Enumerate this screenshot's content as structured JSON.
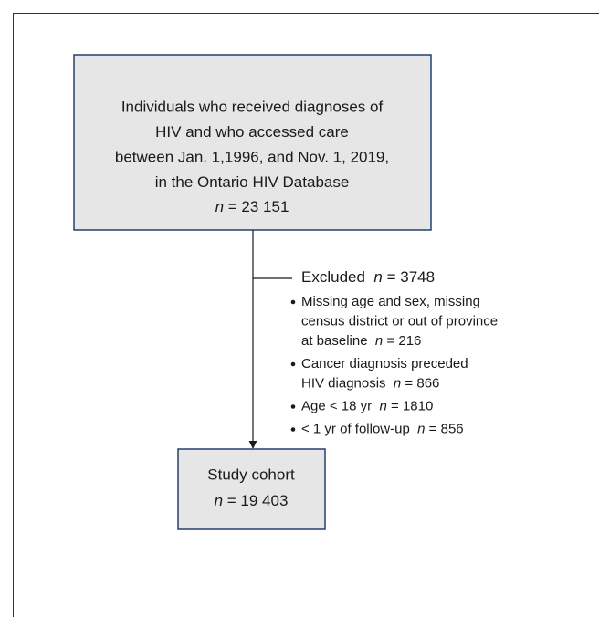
{
  "top_box": {
    "lines": [
      "Individuals who received diagnoses of",
      "HIV and who accessed care",
      "between Jan. 1,1996, and Nov. 1, 2019,",
      "in the Ontario HIV Database"
    ],
    "count": {
      "symbol": "n",
      "text": "= 23 151"
    }
  },
  "excluded": {
    "label": "Excluded",
    "count": {
      "symbol": "n",
      "text": "= 3748"
    },
    "items": [
      {
        "lines": [
          "Missing age and sex, missing",
          "census district or out of province",
          "at baseline"
        ],
        "count": {
          "symbol": "n",
          "text": "= 216"
        }
      },
      {
        "lines": [
          "Cancer diagnosis preceded",
          "HIV diagnosis"
        ],
        "count": {
          "symbol": "n",
          "text": "= 866"
        }
      },
      {
        "lines": [
          "Age < 18 yr"
        ],
        "count": {
          "symbol": "n",
          "text": "= 1810"
        }
      },
      {
        "lines": [
          "< 1 yr of follow-up"
        ],
        "count": {
          "symbol": "n",
          "text": "= 856"
        }
      }
    ]
  },
  "bottom_box": {
    "lines": [
      "Study cohort"
    ],
    "count": {
      "symbol": "n",
      "text": "= 19 403"
    }
  }
}
